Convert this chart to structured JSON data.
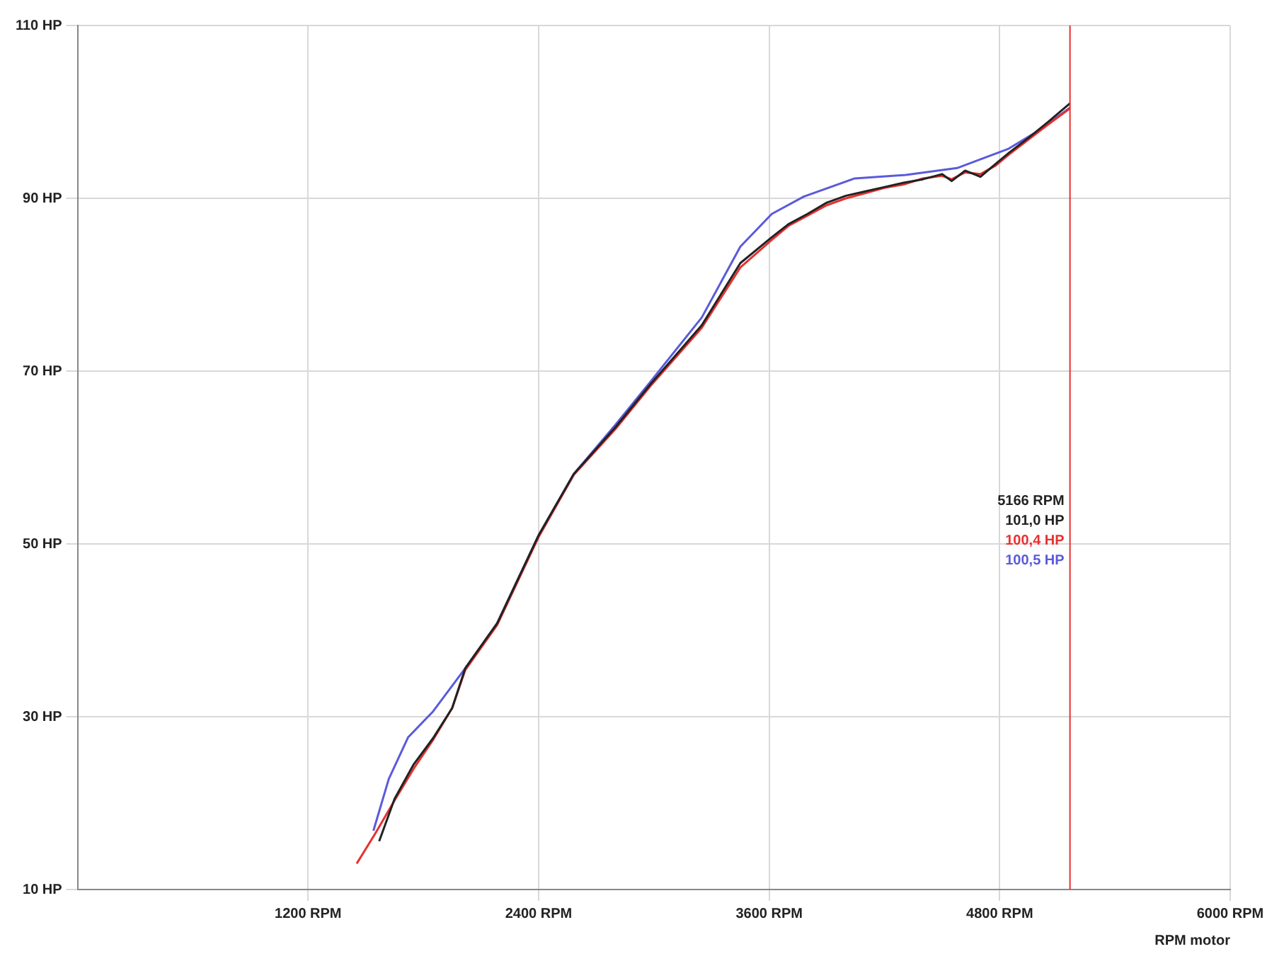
{
  "chart_data": {
    "type": "line",
    "xlabel": "RPM motor",
    "series": [
      {
        "color": "#222222",
        "x": [
          1570,
          1650,
          1750,
          1850,
          1950,
          2018,
          2184,
          2400,
          2583,
          2800,
          2983,
          3249,
          3450,
          3614,
          3700,
          3800,
          3900,
          4000,
          4100,
          4200,
          4300,
          4400,
          4500,
          4550,
          4620,
          4700,
          4780,
          4850,
          4950,
          5050,
          5166
        ],
        "values": [
          15.6,
          20.5,
          24.5,
          27.5,
          31,
          35.6,
          40.8,
          51,
          58.1,
          63.5,
          68.5,
          75.3,
          82.5,
          85.5,
          87,
          88.2,
          89.5,
          90.3,
          90.8,
          91.3,
          91.8,
          92.2,
          92.8,
          92,
          93.2,
          92.5,
          94,
          95.3,
          97,
          98.8,
          101.0
        ]
      },
      {
        "color": "#e83030",
        "x": [
          1453,
          1550,
          1650,
          1750,
          1850,
          1950,
          2018,
          2184,
          2400,
          2583,
          2800,
          2983,
          3249,
          3450,
          3614,
          3700,
          3800,
          3900,
          4000,
          4100,
          4200,
          4300,
          4400,
          4500,
          4550,
          4620,
          4700,
          4780,
          4850,
          4950,
          5050,
          5166
        ],
        "values": [
          13,
          16.5,
          20.3,
          24,
          27.3,
          31,
          35.4,
          40.6,
          50.8,
          58,
          63.3,
          68.3,
          75,
          82,
          85.2,
          86.8,
          88,
          89.2,
          90,
          90.6,
          91.2,
          91.6,
          92.3,
          92.6,
          92.2,
          93,
          92.8,
          93.8,
          95.1,
          96.8,
          98.5,
          100.4
        ]
      },
      {
        "color": "#5a5adc",
        "x": [
          1540,
          1620,
          1720,
          1850,
          2018,
          2184,
          2400,
          2583,
          2800,
          2983,
          3249,
          3450,
          3614,
          3780,
          4045,
          4312,
          4578,
          4843,
          5000,
          5166
        ],
        "values": [
          16.8,
          22.8,
          27.6,
          30.6,
          35.6,
          40.8,
          51,
          58.1,
          63.8,
          68.8,
          76.2,
          84.4,
          88.2,
          90.2,
          92.3,
          92.7,
          93.5,
          95.7,
          97.8,
          100.5
        ]
      }
    ],
    "xlim": [
      0,
      6000
    ],
    "xticks": [
      {
        "value": 1200,
        "label": "1200 RPM"
      },
      {
        "value": 2400,
        "label": "2400 RPM"
      },
      {
        "value": 3600,
        "label": "3600 RPM"
      },
      {
        "value": 4800,
        "label": "4800 RPM"
      },
      {
        "value": 6000,
        "label": "6000 RPM"
      }
    ],
    "ylim": [
      10,
      110
    ],
    "yticks": [
      {
        "value": 10,
        "label": "10 HP"
      },
      {
        "value": 30,
        "label": "30 HP"
      },
      {
        "value": 50,
        "label": "50 HP"
      },
      {
        "value": 70,
        "label": "70 HP"
      },
      {
        "value": 90,
        "label": "90 HP"
      },
      {
        "value": 110,
        "label": "110 HP"
      }
    ],
    "ref_lines": [
      {
        "axis": "x",
        "value": 5166,
        "label": "5166 RPM",
        "color": "#e83030"
      }
    ],
    "annotations": [
      "101,0 HP",
      "100,4 HP",
      "100,5 HP"
    ],
    "grid": true,
    "legend": false,
    "marker": "none",
    "line_style": "solid"
  }
}
